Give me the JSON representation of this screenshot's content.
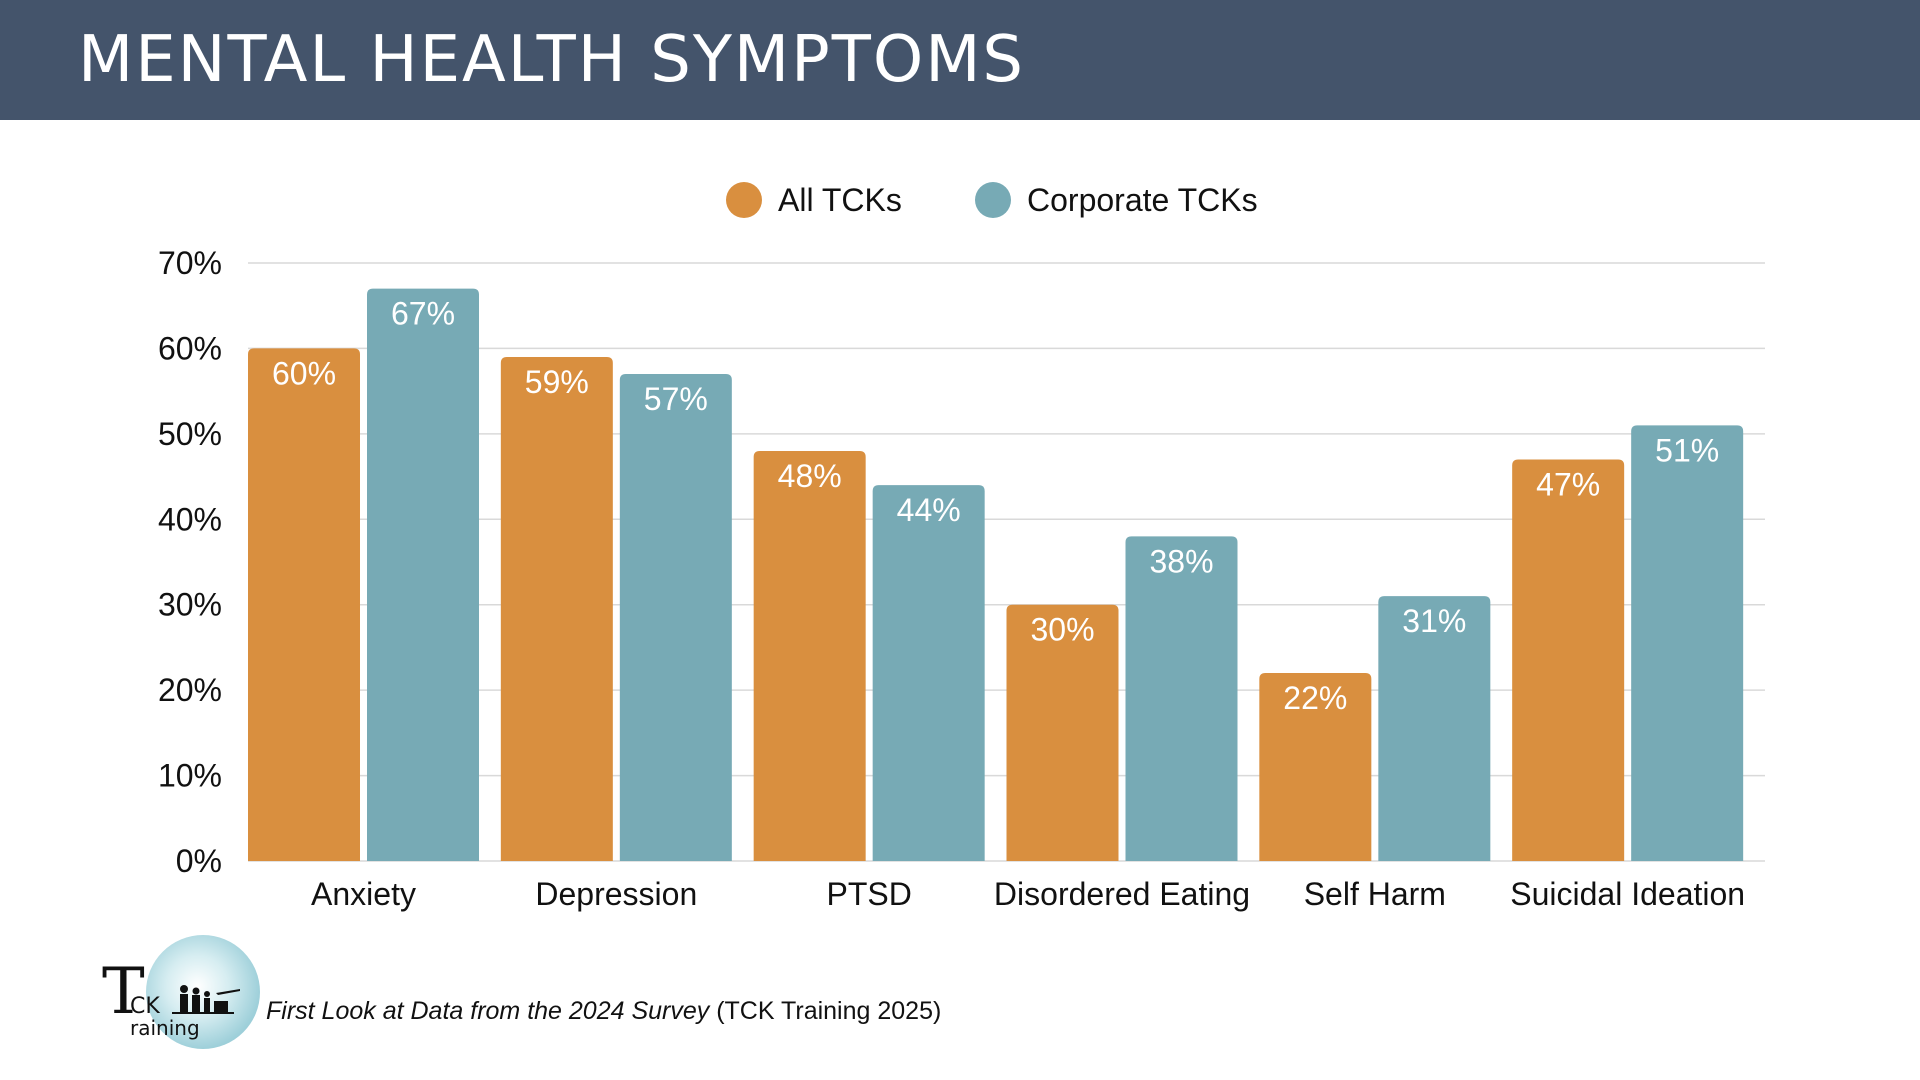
{
  "header": {
    "title": "MENTAL HEALTH SYMPTOMS"
  },
  "colors": {
    "header_bg": "#44546b",
    "all_tcks": "#d98f3f",
    "corporate_tcks": "#77aab5",
    "grid": "#d9d9d9"
  },
  "chart_data": {
    "type": "bar",
    "categories": [
      "Anxiety",
      "Depression",
      "PTSD",
      "Disordered Eating",
      "Self Harm",
      "Suicidal Ideation"
    ],
    "series": [
      {
        "name": "All TCKs",
        "values": [
          60,
          59,
          48,
          30,
          22,
          47
        ],
        "labels": [
          "60%",
          "59%",
          "48%",
          "30%",
          "22%",
          "47%"
        ],
        "color": "#d98f3f"
      },
      {
        "name": "Corporate TCKs",
        "values": [
          67,
          57,
          44,
          38,
          31,
          51
        ],
        "labels": [
          "67%",
          "57%",
          "44%",
          "38%",
          "31%",
          "51%"
        ],
        "color": "#77aab5"
      }
    ],
    "yticks": [
      {
        "value": 0,
        "label": "0%"
      },
      {
        "value": 10,
        "label": "10%"
      },
      {
        "value": 20,
        "label": "20%"
      },
      {
        "value": 30,
        "label": "30%"
      },
      {
        "value": 40,
        "label": "40%"
      },
      {
        "value": 50,
        "label": "50%"
      },
      {
        "value": 60,
        "label": "60%"
      },
      {
        "value": 70,
        "label": "70%"
      }
    ],
    "ylim": [
      0,
      70
    ],
    "grid": true,
    "legend_position": "top-center"
  },
  "footer": {
    "logo_text_initial": "T",
    "logo_text_ck": "CK",
    "logo_text_raining": "raining",
    "citation_italic": "First Look at Data from the 2024 Survey",
    "citation_plain": " (TCK Training 2025)"
  }
}
